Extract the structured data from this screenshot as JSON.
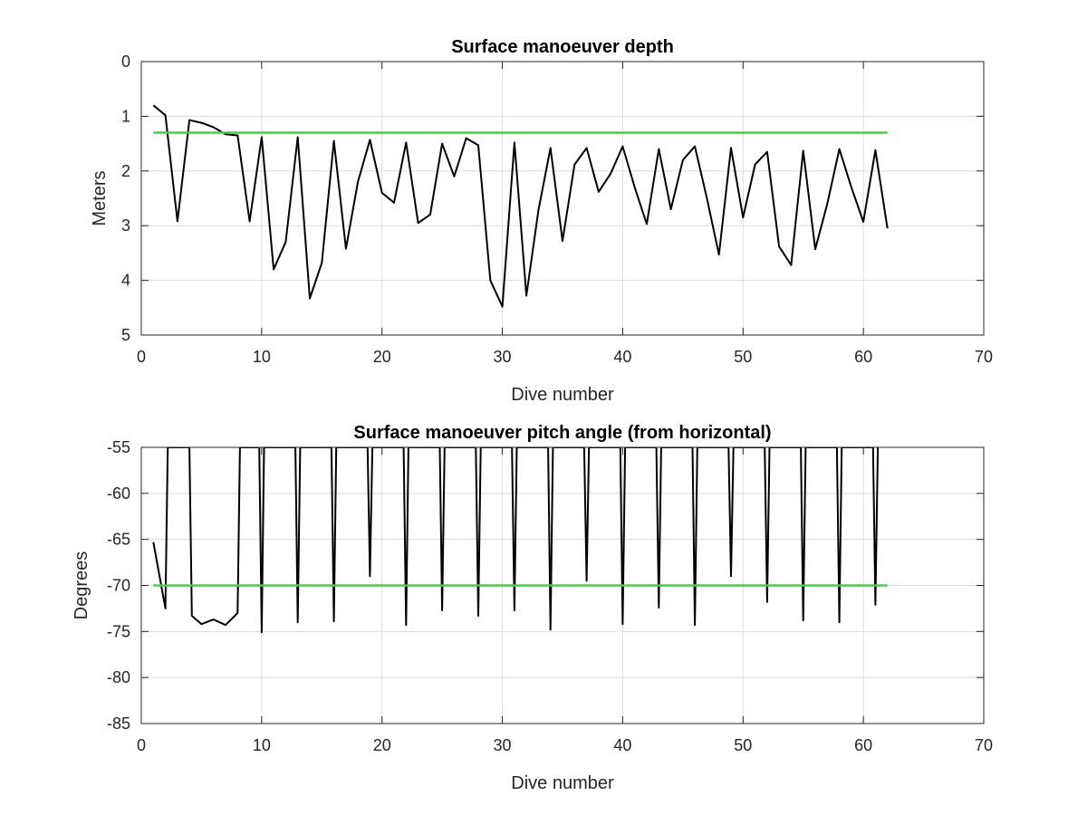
{
  "colors": {
    "background": "#ffffff",
    "data_line": "#000000",
    "threshold_line": "#33dd33",
    "grid": "#dddddd",
    "axes": "#262626"
  },
  "chart_data": [
    {
      "type": "line",
      "title": "Surface manoeuver depth",
      "xlabel": "Dive number",
      "ylabel": "Meters",
      "xlim": [
        0,
        70
      ],
      "ylim": [
        0,
        5
      ],
      "y_reversed": true,
      "grid": true,
      "xticks": [
        0,
        10,
        20,
        30,
        40,
        50,
        60,
        70
      ],
      "yticks": [
        0,
        1,
        2,
        3,
        4,
        5
      ],
      "series": [
        {
          "color": "#000000",
          "x": [
            1,
            2,
            3,
            4,
            5,
            6,
            7,
            8,
            9,
            10,
            11,
            12,
            13,
            14,
            15,
            16,
            17,
            18,
            19,
            20,
            21,
            22,
            23,
            24,
            25,
            26,
            27,
            28,
            29,
            30,
            31,
            32,
            33,
            34,
            35,
            36,
            37,
            38,
            39,
            40,
            41,
            42,
            43,
            44,
            45,
            46,
            47,
            48,
            49,
            50,
            51,
            52,
            53,
            54,
            55,
            56,
            57,
            58,
            59,
            60,
            61,
            62
          ],
          "y": [
            0.8,
            0.98,
            2.92,
            1.07,
            1.12,
            1.2,
            1.33,
            1.35,
            2.92,
            1.38,
            3.8,
            3.3,
            1.38,
            4.33,
            3.68,
            1.45,
            3.42,
            2.2,
            1.43,
            2.4,
            2.58,
            1.48,
            2.95,
            2.8,
            1.5,
            2.1,
            1.4,
            1.53,
            4.0,
            4.48,
            1.48,
            4.28,
            2.72,
            1.58,
            3.28,
            1.88,
            1.58,
            2.38,
            2.05,
            1.55,
            2.3,
            2.97,
            1.6,
            2.7,
            1.8,
            1.55,
            2.5,
            3.53,
            1.58,
            2.85,
            1.88,
            1.65,
            3.38,
            3.72,
            1.63,
            3.43,
            2.6,
            1.6,
            2.3,
            2.93,
            1.62,
            3.05
          ]
        },
        {
          "color": "#33dd33",
          "x": [
            1,
            62
          ],
          "y": [
            1.3,
            1.3
          ]
        }
      ]
    },
    {
      "type": "line",
      "title": "Surface manoeuver pitch angle (from horizontal)",
      "xlabel": "Dive number",
      "ylabel": "Degrees",
      "xlim": [
        0,
        70
      ],
      "ylim": [
        -85,
        -55
      ],
      "grid": true,
      "xticks": [
        0,
        10,
        20,
        30,
        40,
        50,
        60,
        70
      ],
      "yticks": [
        -55,
        -60,
        -65,
        -70,
        -75,
        -80,
        -85
      ],
      "series": [
        {
          "color": "#000000",
          "x": [
            1,
            2,
            2.2,
            4,
            4.2,
            5,
            6,
            7,
            8,
            8.2,
            9.8,
            10,
            10.2,
            12.8,
            13,
            13.2,
            15.8,
            16,
            16.2,
            18.8,
            19,
            19.2,
            21.8,
            22,
            22.2,
            24.8,
            25,
            25.2,
            27.8,
            28,
            28.2,
            30.8,
            31,
            31.2,
            33.8,
            34,
            34.2,
            36.8,
            37,
            37.2,
            39.8,
            40,
            40.2,
            42.8,
            43,
            43.2,
            45.8,
            46,
            46.2,
            48.8,
            49,
            49.2,
            51.8,
            52,
            52.2,
            54.8,
            55,
            55.2,
            57.8,
            58,
            58.2,
            60.8,
            61,
            61.2
          ],
          "y": [
            -65.3,
            -72.5,
            -55,
            -55,
            -73.3,
            -74.2,
            -73.7,
            -74.3,
            -73.0,
            -55,
            -55,
            -75.1,
            -55,
            -55,
            -74.0,
            -55,
            -55,
            -73.9,
            -55,
            -55,
            -69.0,
            -55,
            -55,
            -74.3,
            -55,
            -55,
            -72.7,
            -55,
            -55,
            -73.3,
            -55,
            -55,
            -72.7,
            -55,
            -55,
            -74.8,
            -55,
            -55,
            -69.5,
            -55,
            -55,
            -74.2,
            -55,
            -55,
            -72.4,
            -55,
            -55,
            -74.3,
            -55,
            -55,
            -69.0,
            -55,
            -55,
            -71.8,
            -55,
            -55,
            -73.8,
            -55,
            -55,
            -74.0,
            -55,
            -55,
            -72.1,
            -55
          ]
        },
        {
          "color": "#33dd33",
          "x": [
            1,
            62
          ],
          "y": [
            -70,
            -70
          ]
        }
      ]
    }
  ]
}
